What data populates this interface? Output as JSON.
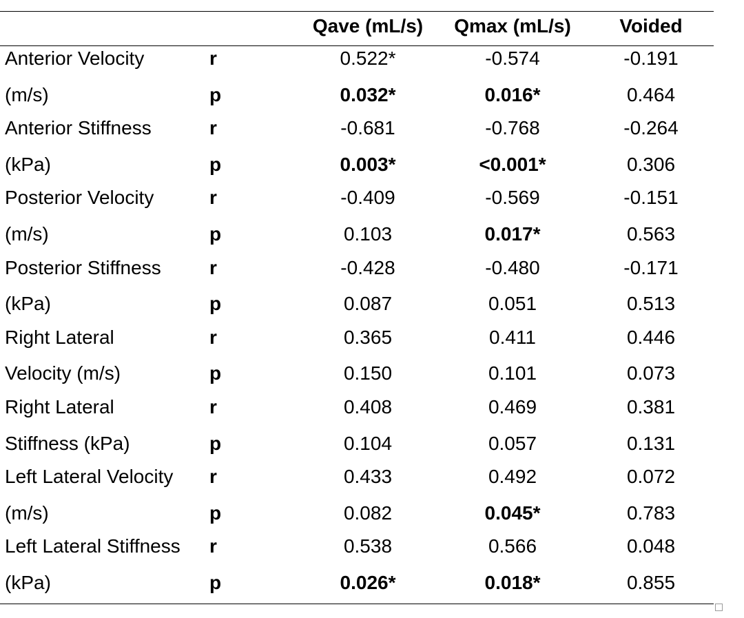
{
  "table": {
    "headers": {
      "label": "",
      "stat": "",
      "qave": "Qave (mL/s)",
      "qmax": "Qmax (mL/s)",
      "voided": "Voided"
    },
    "rows": [
      {
        "label": "Anterior Velocity",
        "stat": "r",
        "qave": "0.522*",
        "qmax": "-0.574",
        "voided": "-0.191",
        "bold": []
      },
      {
        "label": "(m/s)",
        "stat": "p",
        "qave": "0.032*",
        "qmax": "0.016*",
        "voided": "0.464",
        "bold": [
          "qave",
          "qmax"
        ]
      },
      {
        "label": "Anterior Stiffness",
        "stat": "r",
        "qave": "-0.681",
        "qmax": "-0.768",
        "voided": "-0.264",
        "bold": []
      },
      {
        "label": "(kPa)",
        "stat": "p",
        "qave": "0.003*",
        "qmax": "<0.001*",
        "voided": "0.306",
        "bold": [
          "qave",
          "qmax"
        ]
      },
      {
        "label": "Posterior Velocity",
        "stat": "r",
        "qave": "-0.409",
        "qmax": "-0.569",
        "voided": "-0.151",
        "bold": []
      },
      {
        "label": "(m/s)",
        "stat": "p",
        "qave": "0.103",
        "qmax": "0.017*",
        "voided": "0.563",
        "bold": [
          "qmax"
        ]
      },
      {
        "label": "Posterior Stiffness",
        "stat": "r",
        "qave": "-0.428",
        "qmax": "-0.480",
        "voided": "-0.171",
        "bold": []
      },
      {
        "label": "(kPa)",
        "stat": "p",
        "qave": "0.087",
        "qmax": "0.051",
        "voided": "0.513",
        "bold": []
      },
      {
        "label": "Right Lateral",
        "stat": "r",
        "qave": "0.365",
        "qmax": "0.411",
        "voided": "0.446",
        "bold": []
      },
      {
        "label": "Velocity (m/s)",
        "stat": "p",
        "qave": "0.150",
        "qmax": "0.101",
        "voided": "0.073",
        "bold": []
      },
      {
        "label": "Right Lateral",
        "stat": "r",
        "qave": "0.408",
        "qmax": "0.469",
        "voided": "0.381",
        "bold": []
      },
      {
        "label": "Stiffness (kPa)",
        "stat": "p",
        "qave": "0.104",
        "qmax": "0.057",
        "voided": "0.131",
        "bold": []
      },
      {
        "label": "Left Lateral Velocity",
        "stat": "r",
        "qave": "0.433",
        "qmax": "0.492",
        "voided": "0.072",
        "bold": []
      },
      {
        "label": "(m/s)",
        "stat": "p",
        "qave": "0.082",
        "qmax": "0.045*",
        "voided": "0.783",
        "bold": [
          "qmax"
        ]
      },
      {
        "label": "Left Lateral Stiffness",
        "stat": "r",
        "qave": "0.538",
        "qmax": "0.566",
        "voided": "0.048",
        "bold": []
      },
      {
        "label": "(kPa)",
        "stat": "p",
        "qave": "0.026*",
        "qmax": "0.018*",
        "voided": "0.855",
        "bold": [
          "qave",
          "qmax"
        ]
      }
    ]
  }
}
